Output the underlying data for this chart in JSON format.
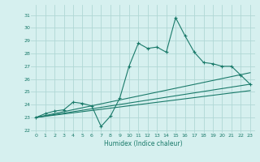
{
  "xlabel": "Humidex (Indice chaleur)",
  "ylabel": "",
  "x_values": [
    0,
    1,
    2,
    3,
    4,
    5,
    6,
    7,
    8,
    9,
    10,
    11,
    12,
    13,
    14,
    15,
    16,
    17,
    18,
    19,
    20,
    21,
    22,
    23
  ],
  "main_line": [
    23.0,
    23.3,
    23.5,
    23.6,
    24.2,
    24.1,
    23.9,
    22.3,
    23.1,
    24.5,
    27.0,
    28.8,
    28.4,
    28.5,
    28.1,
    30.8,
    29.4,
    28.1,
    27.3,
    27.2,
    27.0,
    27.0,
    26.3,
    25.6
  ],
  "line_color": "#1a7a6a",
  "bg_color": "#d6f0ef",
  "grid_color": "#b0d8d5",
  "xlim": [
    -0.5,
    23.5
  ],
  "ylim": [
    21.8,
    31.8
  ],
  "yticks": [
    22,
    23,
    24,
    25,
    26,
    27,
    28,
    29,
    30,
    31
  ],
  "xticks": [
    0,
    1,
    2,
    3,
    4,
    5,
    6,
    7,
    8,
    9,
    10,
    11,
    12,
    13,
    14,
    15,
    16,
    17,
    18,
    19,
    20,
    21,
    22,
    23
  ],
  "trend_line1_x": [
    0,
    23
  ],
  "trend_line1_y": [
    23.0,
    25.6
  ],
  "trend_line2_x": [
    0,
    23
  ],
  "trend_line2_y": [
    23.0,
    25.1
  ],
  "trend_line3_x": [
    0,
    23
  ],
  "trend_line3_y": [
    23.0,
    26.5
  ]
}
